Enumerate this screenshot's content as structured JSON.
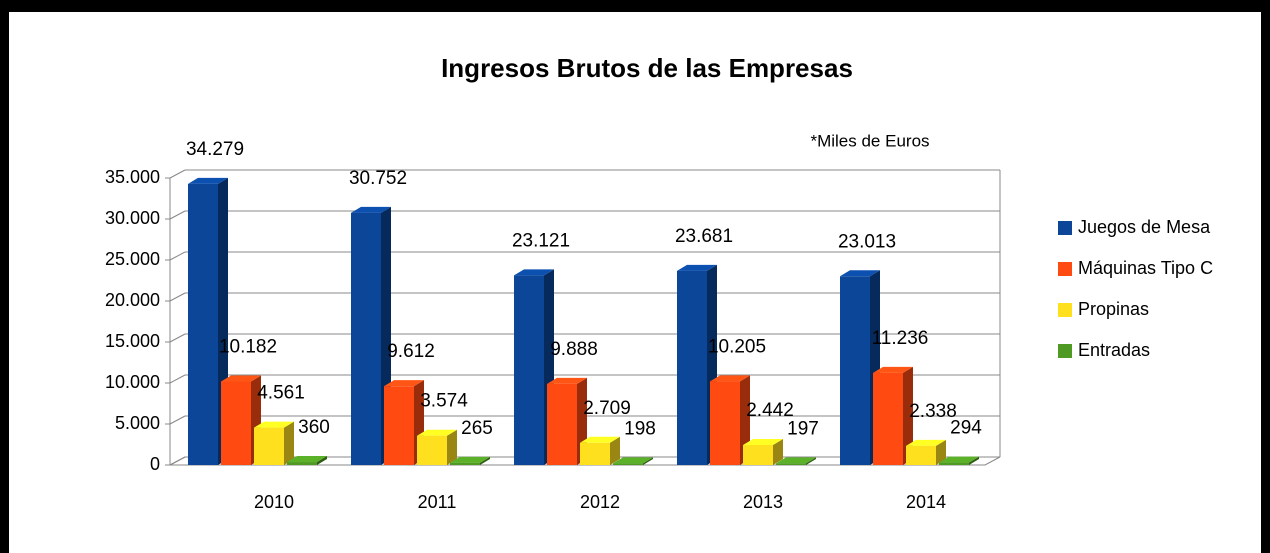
{
  "chart_data": {
    "type": "bar",
    "title": "Ingresos Brutos de las Empresas",
    "annotation": "*Miles de Euros",
    "categories": [
      "2010",
      "2011",
      "2012",
      "2013",
      "2014"
    ],
    "series": [
      {
        "name": "Juegos de Mesa",
        "color": "#0b4699",
        "values": [
          34279,
          30752,
          23121,
          23681,
          23013
        ],
        "value_labels": [
          "34.279",
          "30.752",
          "23.121",
          "23.681",
          "23.013"
        ]
      },
      {
        "name": "Máquinas Tipo C",
        "color": "#ff4b12",
        "values": [
          10182,
          9612,
          9888,
          10205,
          11236
        ],
        "value_labels": [
          "10.182",
          "9.612",
          "9.888",
          "10.205",
          "11.236"
        ]
      },
      {
        "name": "Propinas",
        "color": "#ffe01f",
        "values": [
          4561,
          3574,
          2709,
          2442,
          2338
        ],
        "value_labels": [
          "4.561",
          "3.574",
          "2.709",
          "2.442",
          "2.338"
        ]
      },
      {
        "name": "Entradas",
        "color": "#4f9a23",
        "values": [
          360,
          265,
          198,
          197,
          294
        ],
        "value_labels": [
          "360",
          "265",
          "198",
          "197",
          "294"
        ]
      }
    ],
    "ylim": [
      0,
      35000
    ],
    "yticks": [
      0,
      {
        "value": 5000,
        "label": "5.000"
      },
      {
        "value": 10000,
        "label": "10.000"
      },
      {
        "value": 15000,
        "label": "15.000"
      },
      {
        "value": 20000,
        "label": "20.000"
      },
      {
        "value": 25000,
        "label": "25.000"
      },
      {
        "value": 30000,
        "label": "30.000"
      },
      {
        "value": 35000,
        "label": "35.000"
      }
    ],
    "grid": true,
    "legend": "right"
  }
}
